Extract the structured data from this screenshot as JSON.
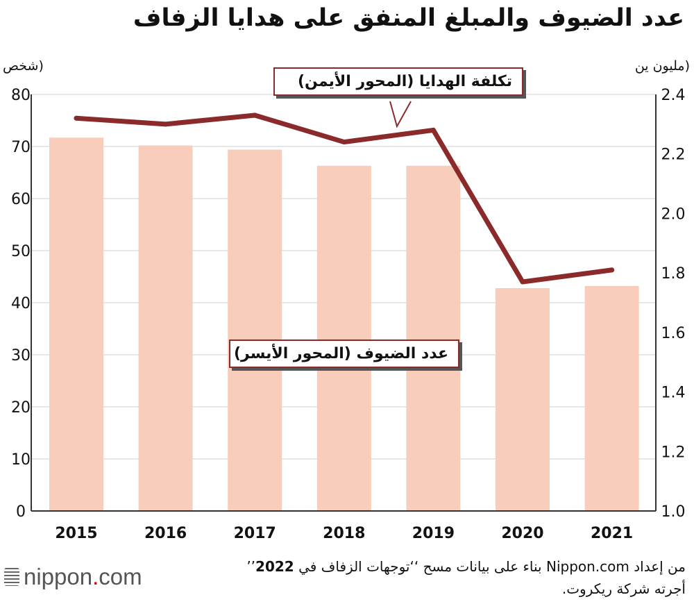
{
  "title": "عدد الضيوف والمبلغ المنفق على هدايا الزفاف",
  "left_axis_unit": "(شخص",
  "right_axis_unit": "(مليون ين",
  "line_callout": "تكلفة الهدايا (المحور الأيمن)",
  "bar_callout": "عدد الضيوف (المحور الأيسر)",
  "source_line1_prefix": "من إعداد Nippon.com بناء على بيانات مسح ‘‘توجهات الزفاف في ",
  "source_year": "2022",
  "source_line1_suffix": "’’",
  "source_line2": "أجرته شركة ريكروت.",
  "logo": {
    "name": "nippon",
    "dot": ".",
    "tld": "com"
  },
  "colors": {
    "bar": "#f8cdbb",
    "line": "#8b2a2a",
    "grid": "#cfcfcf",
    "axis": "#333333"
  },
  "chart_data": {
    "type": "bar",
    "categories": [
      "2015",
      "2016",
      "2017",
      "2018",
      "2019",
      "2020",
      "2021"
    ],
    "series": [
      {
        "name": "عدد الضيوف",
        "axis": "left",
        "type": "bar",
        "values": [
          71.7,
          70.2,
          69.4,
          66.3,
          66.3,
          42.8,
          43.2
        ]
      },
      {
        "name": "تكلفة الهدايا",
        "axis": "right",
        "type": "line",
        "values": [
          2.32,
          2.3,
          2.33,
          2.24,
          2.28,
          1.77,
          1.81
        ]
      }
    ],
    "left_axis": {
      "ylim": [
        0,
        80
      ],
      "ticks": [
        "0",
        "10",
        "20",
        "30",
        "40",
        "50",
        "60",
        "70",
        "80"
      ]
    },
    "right_axis": {
      "ylim": [
        1.0,
        2.4
      ],
      "ticks": [
        "1.0",
        "1.2",
        "1.4",
        "1.6",
        "1.8",
        "2.0",
        "2.2",
        "2.4"
      ]
    },
    "grid": true
  }
}
